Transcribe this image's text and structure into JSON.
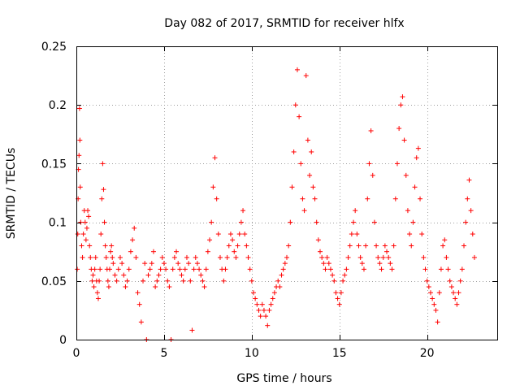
{
  "chart_data": {
    "type": "scatter",
    "title": "Day 082 of 2017, SRMTID for receiver hlfx",
    "xlabel": "GPS time / hours",
    "ylabel": "SRMTID / TECUs",
    "xlim": [
      0,
      24
    ],
    "ylim": [
      0,
      0.25
    ],
    "xticks": [
      0,
      5,
      10,
      15,
      20
    ],
    "xtick_labels": [
      "0",
      "5",
      "10",
      "15",
      "20"
    ],
    "yticks": [
      0,
      0.05,
      0.1,
      0.15,
      0.2,
      0.25
    ],
    "ytick_labels": [
      "0",
      "0.05",
      "0.1",
      "0.15",
      "0.2",
      "0.25"
    ],
    "grid": true,
    "marker": "plus",
    "color": "#ff0000",
    "series": [
      {
        "points": [
          [
            0.05,
            0.06
          ],
          [
            0.08,
            0.09
          ],
          [
            0.1,
            0.12
          ],
          [
            0.12,
            0.145
          ],
          [
            0.15,
            0.157
          ],
          [
            0.18,
            0.197
          ],
          [
            0.2,
            0.17
          ],
          [
            0.22,
            0.13
          ],
          [
            0.25,
            0.1
          ],
          [
            0.3,
            0.08
          ],
          [
            0.35,
            0.07
          ],
          [
            0.4,
            0.09
          ],
          [
            0.45,
            0.11
          ],
          [
            0.5,
            0.1
          ],
          [
            0.55,
            0.085
          ],
          [
            0.6,
            0.095
          ],
          [
            0.65,
            0.11
          ],
          [
            0.7,
            0.105
          ],
          [
            0.75,
            0.08
          ],
          [
            0.8,
            0.07
          ],
          [
            0.85,
            0.06
          ],
          [
            0.9,
            0.05
          ],
          [
            0.95,
            0.055
          ],
          [
            1.0,
            0.045
          ],
          [
            1.05,
            0.06
          ],
          [
            1.1,
            0.07
          ],
          [
            1.15,
            0.05
          ],
          [
            1.2,
            0.04
          ],
          [
            1.25,
            0.035
          ],
          [
            1.3,
            0.05
          ],
          [
            1.35,
            0.06
          ],
          [
            1.4,
            0.09
          ],
          [
            1.45,
            0.12
          ],
          [
            1.5,
            0.15
          ],
          [
            1.55,
            0.128
          ],
          [
            1.6,
            0.1
          ],
          [
            1.65,
            0.08
          ],
          [
            1.7,
            0.07
          ],
          [
            1.75,
            0.06
          ],
          [
            1.8,
            0.05
          ],
          [
            1.85,
            0.045
          ],
          [
            1.9,
            0.06
          ],
          [
            1.95,
            0.075
          ],
          [
            2.0,
            0.08
          ],
          [
            2.05,
            0.07
          ],
          [
            2.1,
            0.065
          ],
          [
            2.2,
            0.055
          ],
          [
            2.3,
            0.05
          ],
          [
            2.4,
            0.06
          ],
          [
            2.5,
            0.07
          ],
          [
            2.6,
            0.065
          ],
          [
            2.7,
            0.055
          ],
          [
            2.8,
            0.045
          ],
          [
            2.9,
            0.05
          ],
          [
            3.0,
            0.06
          ],
          [
            3.1,
            0.075
          ],
          [
            3.2,
            0.085
          ],
          [
            3.3,
            0.095
          ],
          [
            3.4,
            0.07
          ],
          [
            3.5,
            0.04
          ],
          [
            3.6,
            0.03
          ],
          [
            3.7,
            0.015
          ],
          [
            3.8,
            0.05
          ],
          [
            3.9,
            0.065
          ],
          [
            4.0,
            0.0
          ],
          [
            4.1,
            0.055
          ],
          [
            4.2,
            0.06
          ],
          [
            4.3,
            0.065
          ],
          [
            4.4,
            0.075
          ],
          [
            4.5,
            0.045
          ],
          [
            4.6,
            0.05
          ],
          [
            4.7,
            0.055
          ],
          [
            4.8,
            0.06
          ],
          [
            4.9,
            0.07
          ],
          [
            5.0,
            0.065
          ],
          [
            5.1,
            0.06
          ],
          [
            5.2,
            0.05
          ],
          [
            5.3,
            0.045
          ],
          [
            5.4,
            0.0
          ],
          [
            5.5,
            0.06
          ],
          [
            5.6,
            0.07
          ],
          [
            5.7,
            0.075
          ],
          [
            5.8,
            0.065
          ],
          [
            5.9,
            0.06
          ],
          [
            6.0,
            0.055
          ],
          [
            6.1,
            0.05
          ],
          [
            6.2,
            0.06
          ],
          [
            6.3,
            0.07
          ],
          [
            6.4,
            0.065
          ],
          [
            6.5,
            0.05
          ],
          [
            6.6,
            0.008
          ],
          [
            6.7,
            0.06
          ],
          [
            6.8,
            0.07
          ],
          [
            6.9,
            0.065
          ],
          [
            7.0,
            0.06
          ],
          [
            7.1,
            0.055
          ],
          [
            7.2,
            0.05
          ],
          [
            7.3,
            0.045
          ],
          [
            7.4,
            0.06
          ],
          [
            7.5,
            0.075
          ],
          [
            7.6,
            0.085
          ],
          [
            7.7,
            0.1
          ],
          [
            7.8,
            0.13
          ],
          [
            7.9,
            0.155
          ],
          [
            8.0,
            0.12
          ],
          [
            8.1,
            0.09
          ],
          [
            8.2,
            0.07
          ],
          [
            8.3,
            0.06
          ],
          [
            8.4,
            0.05
          ],
          [
            8.5,
            0.06
          ],
          [
            8.6,
            0.07
          ],
          [
            8.7,
            0.08
          ],
          [
            8.8,
            0.09
          ],
          [
            8.9,
            0.085
          ],
          [
            9.0,
            0.075
          ],
          [
            9.1,
            0.07
          ],
          [
            9.2,
            0.08
          ],
          [
            9.3,
            0.09
          ],
          [
            9.4,
            0.1
          ],
          [
            9.5,
            0.11
          ],
          [
            9.6,
            0.09
          ],
          [
            9.7,
            0.08
          ],
          [
            9.8,
            0.07
          ],
          [
            9.9,
            0.06
          ],
          [
            10.0,
            0.05
          ],
          [
            10.1,
            0.04
          ],
          [
            10.2,
            0.035
          ],
          [
            10.3,
            0.03
          ],
          [
            10.4,
            0.025
          ],
          [
            10.5,
            0.02
          ],
          [
            10.6,
            0.03
          ],
          [
            10.7,
            0.025
          ],
          [
            10.8,
            0.02
          ],
          [
            10.9,
            0.012
          ],
          [
            11.0,
            0.025
          ],
          [
            11.1,
            0.03
          ],
          [
            11.2,
            0.035
          ],
          [
            11.3,
            0.04
          ],
          [
            11.4,
            0.045
          ],
          [
            11.5,
            0.05
          ],
          [
            11.6,
            0.045
          ],
          [
            11.7,
            0.055
          ],
          [
            11.8,
            0.06
          ],
          [
            11.9,
            0.065
          ],
          [
            12.0,
            0.07
          ],
          [
            12.1,
            0.08
          ],
          [
            12.2,
            0.1
          ],
          [
            12.3,
            0.13
          ],
          [
            12.4,
            0.16
          ],
          [
            12.5,
            0.2
          ],
          [
            12.6,
            0.23
          ],
          [
            12.7,
            0.19
          ],
          [
            12.8,
            0.15
          ],
          [
            12.9,
            0.12
          ],
          [
            13.0,
            0.11
          ],
          [
            13.1,
            0.225
          ],
          [
            13.2,
            0.17
          ],
          [
            13.3,
            0.14
          ],
          [
            13.4,
            0.16
          ],
          [
            13.5,
            0.13
          ],
          [
            13.6,
            0.12
          ],
          [
            13.7,
            0.1
          ],
          [
            13.8,
            0.085
          ],
          [
            13.9,
            0.075
          ],
          [
            14.0,
            0.07
          ],
          [
            14.1,
            0.065
          ],
          [
            14.2,
            0.06
          ],
          [
            14.3,
            0.07
          ],
          [
            14.4,
            0.065
          ],
          [
            14.5,
            0.06
          ],
          [
            14.6,
            0.055
          ],
          [
            14.7,
            0.05
          ],
          [
            14.8,
            0.04
          ],
          [
            14.9,
            0.035
          ],
          [
            15.0,
            0.03
          ],
          [
            15.1,
            0.04
          ],
          [
            15.2,
            0.05
          ],
          [
            15.3,
            0.055
          ],
          [
            15.4,
            0.06
          ],
          [
            15.5,
            0.07
          ],
          [
            15.6,
            0.08
          ],
          [
            15.7,
            0.09
          ],
          [
            15.8,
            0.1
          ],
          [
            15.9,
            0.11
          ],
          [
            16.0,
            0.09
          ],
          [
            16.1,
            0.08
          ],
          [
            16.2,
            0.07
          ],
          [
            16.3,
            0.065
          ],
          [
            16.4,
            0.06
          ],
          [
            16.5,
            0.08
          ],
          [
            16.6,
            0.12
          ],
          [
            16.7,
            0.15
          ],
          [
            16.8,
            0.178
          ],
          [
            16.9,
            0.14
          ],
          [
            17.0,
            0.1
          ],
          [
            17.1,
            0.08
          ],
          [
            17.2,
            0.07
          ],
          [
            17.3,
            0.065
          ],
          [
            17.4,
            0.06
          ],
          [
            17.5,
            0.07
          ],
          [
            17.6,
            0.08
          ],
          [
            17.7,
            0.075
          ],
          [
            17.8,
            0.07
          ],
          [
            17.9,
            0.065
          ],
          [
            18.0,
            0.06
          ],
          [
            18.1,
            0.08
          ],
          [
            18.2,
            0.12
          ],
          [
            18.3,
            0.15
          ],
          [
            18.4,
            0.18
          ],
          [
            18.5,
            0.2
          ],
          [
            18.6,
            0.207
          ],
          [
            18.7,
            0.17
          ],
          [
            18.8,
            0.14
          ],
          [
            18.9,
            0.11
          ],
          [
            19.0,
            0.09
          ],
          [
            19.1,
            0.08
          ],
          [
            19.2,
            0.1
          ],
          [
            19.3,
            0.13
          ],
          [
            19.4,
            0.155
          ],
          [
            19.5,
            0.163
          ],
          [
            19.6,
            0.12
          ],
          [
            19.7,
            0.09
          ],
          [
            19.8,
            0.07
          ],
          [
            19.9,
            0.06
          ],
          [
            20.0,
            0.05
          ],
          [
            20.1,
            0.045
          ],
          [
            20.2,
            0.04
          ],
          [
            20.3,
            0.035
          ],
          [
            20.4,
            0.03
          ],
          [
            20.5,
            0.025
          ],
          [
            20.6,
            0.015
          ],
          [
            20.7,
            0.04
          ],
          [
            20.8,
            0.06
          ],
          [
            20.9,
            0.08
          ],
          [
            21.0,
            0.085
          ],
          [
            21.1,
            0.07
          ],
          [
            21.2,
            0.06
          ],
          [
            21.3,
            0.05
          ],
          [
            21.4,
            0.045
          ],
          [
            21.5,
            0.04
          ],
          [
            21.6,
            0.035
          ],
          [
            21.7,
            0.03
          ],
          [
            21.8,
            0.04
          ],
          [
            21.9,
            0.05
          ],
          [
            22.0,
            0.06
          ],
          [
            22.1,
            0.08
          ],
          [
            22.2,
            0.1
          ],
          [
            22.3,
            0.12
          ],
          [
            22.4,
            0.136
          ],
          [
            22.5,
            0.11
          ],
          [
            22.6,
            0.09
          ],
          [
            22.7,
            0.07
          ]
        ]
      }
    ]
  }
}
